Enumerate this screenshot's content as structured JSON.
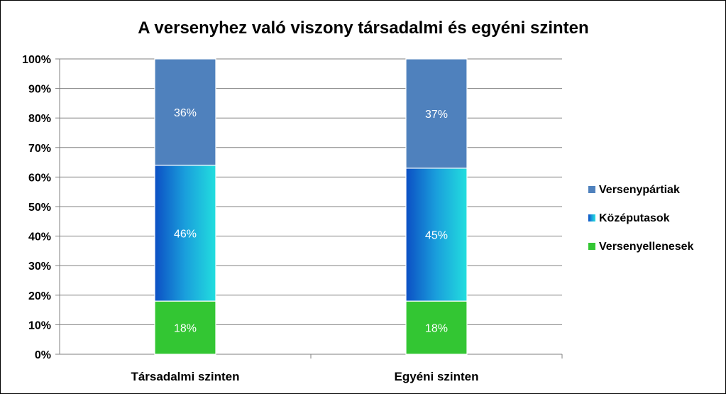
{
  "chart_data": {
    "type": "bar",
    "stacked": true,
    "percent_stacked": true,
    "title": "A versenyhez való viszony társadalmi és egyéni szinten",
    "categories": [
      "Társadalmi szinten",
      "Egyéni szinten"
    ],
    "series": [
      {
        "name": "Versenyellenesek",
        "values": [
          18,
          18
        ],
        "labels": [
          "18%",
          "18%"
        ],
        "color": "#33c633"
      },
      {
        "name": "Középutasok",
        "values": [
          46,
          45
        ],
        "labels": [
          "46%",
          "45%"
        ],
        "color": "#1aa6d6"
      },
      {
        "name": "Versenypártiak",
        "values": [
          36,
          37
        ],
        "labels": [
          "36%",
          "37%"
        ],
        "color": "#4f81bd"
      }
    ],
    "ylim": [
      0,
      100
    ],
    "yticks": [
      "0%",
      "10%",
      "20%",
      "30%",
      "40%",
      "50%",
      "60%",
      "70%",
      "80%",
      "90%",
      "100%"
    ],
    "grid": true,
    "legend_position": "right",
    "legend_order": [
      "Versenypártiak",
      "Középutasok",
      "Versenyellenesek"
    ]
  }
}
